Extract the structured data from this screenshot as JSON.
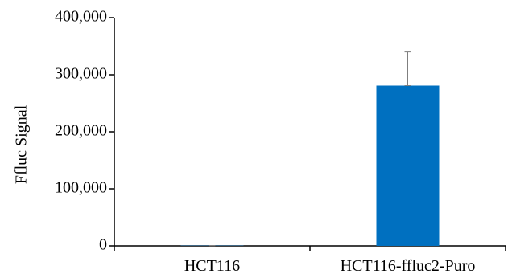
{
  "chart_data": {
    "type": "bar",
    "title": "",
    "xlabel": "",
    "ylabel": "Ffluc Signal",
    "categories": [
      "HCT116",
      "HCT116-ffluc2-Puro"
    ],
    "values": [
      500,
      281000
    ],
    "error_bars": [
      200,
      59000
    ],
    "ylim": [
      0,
      400000
    ],
    "yticks": [
      0,
      100000,
      200000,
      300000,
      400000
    ],
    "ytick_labels": [
      "0",
      "100,000",
      "200,000",
      "300,000",
      "400,000"
    ],
    "bar_color": "#0070C0",
    "error_bar_color": "#7f7f7f",
    "grid": false,
    "legend": "none"
  }
}
